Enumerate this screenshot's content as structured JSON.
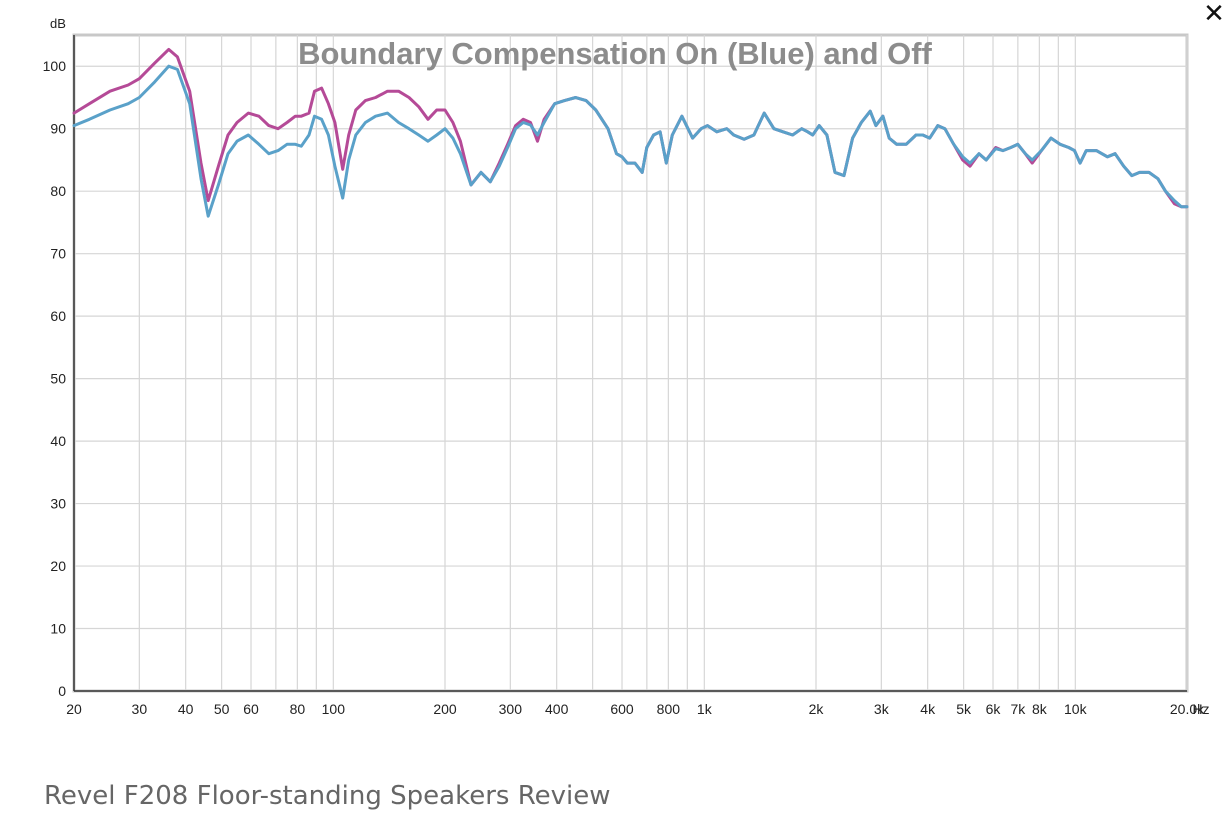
{
  "close_label": "✕",
  "caption": "Revel F208 Floor-standing Speakers Review",
  "colors": {
    "on": "#5aa1c9",
    "off": "#b54a97"
  },
  "chart_data": {
    "type": "line",
    "title": "Boundary Compensation On (Blue) and Off",
    "ylabel_unit": "dB",
    "xlabel_unit": "Hz",
    "x_scale": "log",
    "xlim": [
      20,
      20000
    ],
    "ylim": [
      0,
      105
    ],
    "grid": true,
    "y_ticks": [
      0,
      10,
      20,
      30,
      40,
      50,
      60,
      70,
      80,
      90,
      100
    ],
    "x_ticks": [
      {
        "v": 20,
        "label": "20"
      },
      {
        "v": 30,
        "label": "30"
      },
      {
        "v": 40,
        "label": "40"
      },
      {
        "v": 50,
        "label": "50"
      },
      {
        "v": 60,
        "label": "60"
      },
      {
        "v": 80,
        "label": "80"
      },
      {
        "v": 100,
        "label": "100"
      },
      {
        "v": 200,
        "label": "200"
      },
      {
        "v": 300,
        "label": "300"
      },
      {
        "v": 400,
        "label": "400"
      },
      {
        "v": 600,
        "label": "600"
      },
      {
        "v": 800,
        "label": "800"
      },
      {
        "v": 1000,
        "label": "1k"
      },
      {
        "v": 2000,
        "label": "2k"
      },
      {
        "v": 3000,
        "label": "3k"
      },
      {
        "v": 4000,
        "label": "4k"
      },
      {
        "v": 5000,
        "label": "5k"
      },
      {
        "v": 6000,
        "label": "6k"
      },
      {
        "v": 7000,
        "label": "7k"
      },
      {
        "v": 8000,
        "label": "8k"
      },
      {
        "v": 10000,
        "label": "10k"
      },
      {
        "v": 20000,
        "label": "20.0k"
      }
    ],
    "x_gridlines": [
      20,
      30,
      40,
      50,
      60,
      70,
      80,
      90,
      100,
      200,
      300,
      400,
      500,
      600,
      700,
      800,
      900,
      1000,
      2000,
      3000,
      4000,
      5000,
      6000,
      7000,
      8000,
      9000,
      10000,
      20000
    ],
    "series": [
      {
        "name": "Blue",
        "color": "#5aa1c9",
        "x": [
          20,
          22,
          25,
          28,
          30,
          33,
          36,
          38,
          41,
          44,
          46,
          49,
          52,
          55,
          59,
          63,
          67,
          71,
          75,
          79,
          82,
          86,
          89,
          93,
          97,
          101,
          106,
          110,
          115,
          122,
          130,
          140,
          150,
          160,
          170,
          180,
          190,
          200,
          210,
          220,
          235,
          250,
          265,
          280,
          295,
          310,
          325,
          340,
          355,
          370,
          395,
          420,
          450,
          480,
          510,
          550,
          580,
          600,
          620,
          650,
          680,
          700,
          730,
          760,
          790,
          820,
          870,
          930,
          980,
          1020,
          1080,
          1150,
          1200,
          1280,
          1360,
          1450,
          1540,
          1630,
          1730,
          1830,
          1900,
          1960,
          2040,
          2140,
          2250,
          2380,
          2510,
          2650,
          2800,
          2900,
          3030,
          3150,
          3300,
          3500,
          3720,
          3880,
          4050,
          4260,
          4450,
          4700,
          4970,
          5200,
          5500,
          5750,
          6100,
          6380,
          6700,
          7000,
          7330,
          7650,
          8100,
          8600,
          9100,
          9600,
          9950,
          10300,
          10700,
          11400,
          12200,
          12800,
          13500,
          14200,
          14900,
          15800,
          16700,
          17500,
          18500,
          19300,
          20000
        ],
        "y": [
          90.5,
          91.5,
          93,
          94,
          95,
          97.5,
          100,
          99.5,
          94,
          82,
          76,
          81,
          86,
          88,
          89,
          87.5,
          86,
          86.5,
          87.5,
          87.5,
          87.2,
          89,
          92,
          91.5,
          89,
          84,
          78.9,
          85,
          89,
          91,
          92,
          92.5,
          91,
          90,
          89,
          88,
          89,
          90,
          88.5,
          86,
          81,
          83,
          81.5,
          84,
          87,
          90,
          91,
          90.6,
          89,
          91,
          94,
          94.5,
          95,
          94.5,
          93,
          90,
          86,
          85.5,
          84.5,
          84.5,
          83,
          87,
          89,
          89.5,
          84.5,
          89,
          92,
          88.5,
          90,
          90.5,
          89.5,
          90,
          89,
          88.3,
          89,
          92.5,
          90,
          89.5,
          89,
          90,
          89.5,
          89,
          90.5,
          89,
          83,
          82.5,
          88.5,
          91,
          92.8,
          90.5,
          92,
          88.5,
          87.5,
          87.5,
          89,
          89,
          88.5,
          90.5,
          90,
          87.5,
          85.5,
          84.5,
          86,
          85,
          86.8,
          86.5,
          87,
          87.5,
          86,
          85,
          86.5,
          88.5,
          87.5,
          87,
          86.5,
          84.5,
          86.5,
          86.5,
          85.5,
          86,
          84,
          82.5,
          83,
          83,
          82,
          80,
          78.5,
          77.5,
          77.5
        ]
      },
      {
        "name": "Off",
        "color": "#b54a97",
        "x": [
          20,
          22,
          25,
          28,
          30,
          33,
          36,
          38,
          41,
          44,
          46,
          49,
          52,
          55,
          59,
          63,
          67,
          71,
          75,
          79,
          82,
          86,
          89,
          93,
          97,
          101,
          106,
          110,
          115,
          122,
          130,
          140,
          150,
          160,
          170,
          180,
          190,
          200,
          210,
          220,
          235,
          250,
          265,
          280,
          295,
          310,
          325,
          340,
          355,
          370,
          395,
          420,
          450,
          480,
          510,
          550,
          580,
          600,
          620,
          650,
          680,
          700,
          730,
          760,
          790,
          820,
          870,
          930,
          980,
          1020,
          1080,
          1150,
          1200,
          1280,
          1360,
          1450,
          1540,
          1630,
          1730,
          1830,
          1900,
          1960,
          2040,
          2140,
          2250,
          2380,
          2510,
          2650,
          2800,
          2900,
          3030,
          3150,
          3300,
          3500,
          3720,
          3880,
          4050,
          4260,
          4450,
          4700,
          4970,
          5200,
          5500,
          5750,
          6100,
          6380,
          6700,
          7000,
          7330,
          7650,
          8100,
          8600,
          9100,
          9600,
          9950,
          10300,
          10700,
          11400,
          12200,
          12800,
          13500,
          14200,
          14900,
          15800,
          16700,
          17500,
          18500,
          19300,
          20000
        ],
        "y": [
          92.5,
          94,
          96,
          97,
          98,
          100.5,
          102.7,
          101.5,
          96,
          84.5,
          78.5,
          84,
          89,
          91,
          92.5,
          92,
          90.5,
          90,
          91,
          92,
          92,
          92.5,
          96,
          96.5,
          94,
          91,
          83.5,
          89,
          93,
          94.5,
          95,
          96,
          96,
          95,
          93.5,
          91.5,
          93,
          93,
          91,
          88,
          81,
          83,
          81.5,
          84.5,
          87.5,
          90.5,
          91.5,
          91,
          88,
          91.5,
          94,
          94.5,
          95,
          94.5,
          93,
          90,
          86,
          85.5,
          84.5,
          84.5,
          83,
          87,
          89,
          89.5,
          84.5,
          89,
          92,
          88.5,
          90,
          90.5,
          89.5,
          90,
          89,
          88.3,
          89,
          92.5,
          90,
          89.5,
          89,
          90,
          89.5,
          89,
          90.5,
          89,
          83,
          82.5,
          88.5,
          91,
          92.8,
          90.5,
          92,
          88.5,
          87.5,
          87.5,
          89,
          89,
          88.5,
          90.5,
          90,
          87.5,
          85,
          84,
          86,
          85,
          87,
          86.5,
          87,
          87.5,
          86,
          84.5,
          86.5,
          88.5,
          87.5,
          87,
          86.5,
          84.5,
          86.5,
          86.5,
          85.5,
          86,
          84,
          82.5,
          83,
          83,
          82,
          80,
          78,
          77.5,
          77.5
        ]
      }
    ]
  }
}
